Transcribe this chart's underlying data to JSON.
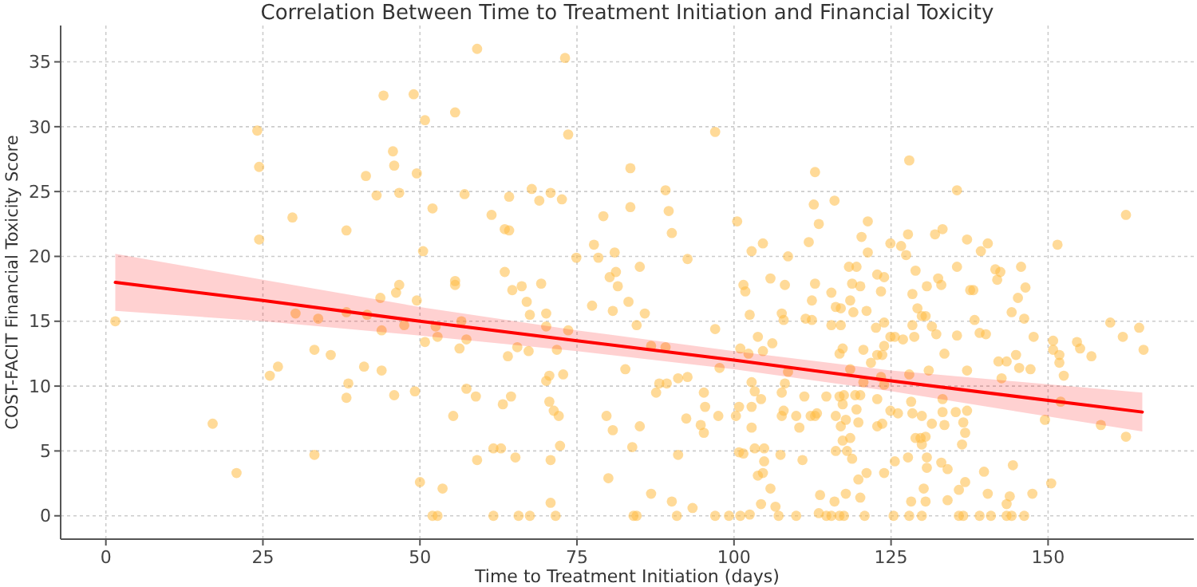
{
  "chart_data": {
    "type": "scatter",
    "title": "Correlation Between Time to Treatment Initiation and Financial Toxicity",
    "xlabel": "Time to Treatment Initiation (days)",
    "ylabel": "COST-FACIT Financial Toxicity Score",
    "xlim": [
      -7.2,
      173.2
    ],
    "xticks": [
      0,
      25,
      50,
      75,
      100,
      125,
      150
    ],
    "ylim": [
      -1.8,
      37.8
    ],
    "yticks": [
      0,
      5,
      10,
      15,
      20,
      25,
      30,
      35
    ],
    "grid": true,
    "series": [
      {
        "marker": "circle",
        "color": "#ffbb44",
        "x": [
          24.1,
          24.4,
          24.4,
          29.7,
          38.3,
          41.4,
          43.1,
          44.2,
          45.7,
          45.9,
          46.7,
          49.0,
          49.5,
          50.8,
          52.0,
          50.5,
          46.7,
          46.2,
          1.5,
          17.0,
          20.8,
          26.1,
          27.4,
          30.2,
          33.2,
          33.2,
          33.8,
          35.8,
          38.6,
          38.3,
          38.3,
          41.1,
          41.6,
          43.9,
          43.9,
          43.7,
          45.9,
          47.5,
          49.2,
          49.5,
          50.0,
          50.8,
          52.8,
          52.8,
          53.6,
          52.5,
          59.1,
          55.6,
          73.1,
          73.6,
          97.0,
          83.5,
          57.1,
          67.8,
          70.8,
          64.2,
          69.0,
          72.6,
          61.4,
          63.5,
          64.2,
          79.2,
          83.5,
          89.1,
          89.6,
          90.1,
          77.7,
          81.0,
          74.9,
          78.4,
          92.6,
          85.0,
          81.2,
          80.2,
          81.5,
          63.5,
          64.7,
          66.2,
          69.3,
          55.6,
          55.6,
          100.5,
          102.8,
          104.6,
          105.8,
          108.1,
          108.6,
          111.9,
          112.7,
          112.9,
          113.5,
          101.5,
          101.8,
          112.9,
          127.9,
          135.5,
          162.4,
          116.0,
          121.3,
          120.3,
          121.3,
          124.9,
          126.6,
          127.4,
          127.7,
          132.0,
          133.2,
          137.1,
          140.4,
          139.3,
          135.5,
          128.9,
          118.3,
          119.5,
          122.8,
          123.9,
          123.4,
          128.4,
          118.8,
          120.1,
          115.5,
          130.7,
          132.5,
          133.0,
          141.6,
          142.4,
          141.9,
          145.7,
          146.4,
          151.5,
          137.6,
          138.1,
          52.0,
          56.3,
          57.4,
          56.6,
          57.4,
          58.9,
          55.3,
          59.1,
          61.7,
          62.9,
          65.2,
          61.7,
          65.7,
          67.5,
          71.6,
          70.8,
          70.8,
          72.3,
          63.2,
          64.5,
          70.6,
          71.3,
          72.1,
          70.1,
          70.6,
          72.8,
          64.0,
          65.5,
          67.3,
          71.8,
          70.1,
          73.6,
          67.0,
          67.5,
          70.1,
          77.4,
          80.7,
          83.2,
          85.8,
          84.5,
          79.7,
          80.7,
          85.0,
          83.8,
          80.0,
          84.0,
          84.5,
          82.7,
          87.6,
          88.1,
          89.3,
          91.1,
          92.6,
          86.8,
          89.1,
          86.8,
          90.1,
          90.9,
          93.4,
          91.1,
          92.4,
          94.7,
          95.2,
          95.4,
          95.2,
          97.5,
          97.0,
          97.7,
          97.0,
          99.2,
          101.0,
          102.5,
          102.5,
          103.8,
          101.0,
          102.3,
          104.6,
          102.8,
          103.3,
          104.3,
          100.8,
          100.3,
          102.8,
          102.8,
          100.8,
          101.5,
          103.3,
          104.8,
          104.8,
          104.6,
          103.8,
          105.8,
          104.3,
          106.6,
          107.1,
          109.9,
          107.6,
          107.9,
          109.9,
          107.6,
          111.2,
          108.1,
          108.6,
          107.4,
          110.9,
          110.4,
          112.2,
          112.9,
          113.7,
          113.5,
          114.7,
          107.6,
          107.9,
          111.4,
          112.4,
          112.4,
          106.1,
          159.9,
          164.5,
          161.9,
          165.2,
          154.6,
          155.1,
          156.9,
          150.8,
          150.8,
          151.8,
          151.8,
          152.5,
          152.0,
          149.5,
          158.4,
          162.4,
          150.5,
          147.7,
          145.4,
          147.2,
          144.9,
          142.1,
          143.4,
          142.6,
          146.2,
          145.2,
          144.2,
          138.3,
          140.1,
          135.5,
          133.5,
          137.1,
          131.0,
          127.9,
          128.2,
          133.2,
          137.1,
          133.2,
          135.3,
          129.9,
          128.4,
          126.1,
          124.9,
          131.5,
          133.5,
          136.5,
          136.8,
          136.3,
          128.9,
          129.7,
          130.5,
          129.9,
          127.7,
          125.6,
          130.7,
          130.7,
          133.0,
          134.0,
          139.8,
          144.4,
          136.8,
          135.8,
          140.4,
          143.9,
          143.4,
          147.5,
          130.2,
          130.5,
          134.0,
          128.2,
          123.9,
          119.8,
          121.1,
          117.8,
          120.1,
          116.0,
          115.5,
          116.8,
          117.5,
          120.8,
          125.4,
          127.9,
          129.9,
          135.8,
          136.5,
          139.1,
          140.9,
          143.4,
          144.2,
          146.2,
          116.2,
          118.0,
          118.8,
          117.3,
          118.5,
          117.0,
          116.2,
          117.8,
          119.8,
          122.8,
          123.6,
          119.5,
          117.3,
          116.8,
          117.5,
          114.7,
          113.2,
          119.3,
          120.1,
          122.8,
          123.9,
          123.4,
          120.6,
          121.8,
          122.8,
          123.6,
          120.6,
          117.3,
          116.8,
          118.5,
          123.9,
          124.9,
          125.6,
          122.6,
          123.9,
          126.9,
          128.7,
          128.4,
          129.9,
          130.5,
          131.5,
          132.2,
          129.2,
          116.2,
          117.0,
          119.0,
          121.1,
          118.5,
          115.5,
          117.0,
          139.1
        ],
        "values": [
          29.7,
          26.9,
          21.3,
          23.0,
          22.0,
          26.2,
          24.7,
          32.4,
          28.1,
          27.0,
          24.9,
          32.5,
          26.4,
          30.5,
          23.7,
          20.4,
          17.8,
          17.2,
          15.0,
          7.1,
          3.3,
          10.8,
          11.5,
          15.6,
          12.8,
          4.7,
          15.2,
          12.4,
          10.2,
          9.1,
          15.7,
          11.5,
          15.5,
          14.3,
          11.2,
          16.8,
          9.3,
          14.7,
          9.6,
          16.6,
          2.6,
          13.4,
          13.8,
          0,
          2.1,
          14.6,
          36.0,
          31.1,
          35.3,
          29.4,
          29.6,
          26.8,
          24.8,
          25.2,
          24.9,
          24.6,
          24.3,
          24.4,
          23.2,
          22.1,
          22.0,
          23.1,
          23.8,
          25.1,
          23.5,
          21.8,
          20.9,
          20.3,
          19.9,
          19.9,
          19.8,
          19.2,
          18.8,
          18.4,
          17.7,
          18.8,
          17.4,
          17.7,
          17.9,
          18.1,
          17.8,
          22.7,
          20.4,
          21.0,
          18.3,
          17.8,
          20.0,
          21.1,
          24.0,
          26.5,
          22.5,
          17.8,
          17.3,
          17.9,
          27.4,
          25.1,
          23.2,
          24.3,
          22.7,
          21.5,
          20.3,
          21.0,
          20.8,
          20.1,
          21.7,
          21.7,
          22.1,
          21.3,
          21.0,
          20.4,
          19.2,
          18.9,
          19.2,
          19.2,
          18.6,
          18.4,
          17.3,
          17.1,
          17.9,
          17.7,
          17.2,
          17.7,
          18.3,
          17.8,
          19.0,
          18.8,
          18.2,
          19.2,
          17.6,
          20.9,
          17.4,
          17.4,
          0,
          12.9,
          13.6,
          15.0,
          9.8,
          9.2,
          7.7,
          4.3,
          5.2,
          5.2,
          4.5,
          0,
          0,
          0,
          0,
          1.0,
          4.3,
          5.4,
          8.6,
          9.2,
          8.8,
          8.1,
          7.7,
          10.4,
          10.8,
          10.9,
          12.3,
          13.0,
          12.7,
          12.8,
          14.6,
          14.3,
          16.5,
          15.5,
          15.6,
          16.2,
          15.8,
          16.5,
          15.6,
          14.7,
          7.7,
          6.6,
          6.9,
          5.3,
          2.9,
          0,
          0,
          11.3,
          9.5,
          10.2,
          10.2,
          10.6,
          10.7,
          13.1,
          13.0,
          1.7,
          1.1,
          0,
          0.6,
          4.7,
          7.5,
          7.0,
          6.4,
          8.4,
          9.5,
          7.7,
          14.4,
          11.4,
          0,
          0,
          0,
          0.1,
          15.5,
          13.8,
          12.9,
          12.5,
          12.7,
          10.3,
          9.6,
          9.0,
          8.4,
          7.7,
          8.4,
          6.8,
          4.9,
          4.8,
          5.2,
          5.2,
          4.2,
          3.3,
          3.1,
          2.1,
          0.9,
          0.7,
          0,
          0,
          7.7,
          8.1,
          7.7,
          9.5,
          9.2,
          10.2,
          11.1,
          4.7,
          4.3,
          6.8,
          7.7,
          7.7,
          1.6,
          0.2,
          0,
          15.6,
          15.1,
          15.2,
          15.1,
          16.6,
          13.3,
          14.9,
          14.5,
          13.8,
          12.8,
          13.4,
          12.9,
          12.3,
          13.5,
          12.8,
          12.4,
          11.8,
          10.8,
          8.8,
          7.4,
          7.0,
          6.1,
          2.5,
          13.8,
          11.4,
          11.3,
          12.4,
          11.9,
          11.9,
          10.6,
          15.2,
          16.8,
          15.7,
          15.1,
          14.0,
          13.9,
          12.5,
          11.2,
          11.2,
          10.9,
          8.8,
          9.0,
          8.1,
          8.0,
          8.0,
          7.7,
          7.9,
          7.9,
          8.1,
          7.1,
          7.0,
          7.2,
          6.4,
          5.5,
          6.0,
          6.0,
          6.1,
          5.5,
          4.5,
          4.2,
          4.5,
          3.7,
          4.1,
          3.6,
          3.4,
          3.9,
          2.6,
          2.0,
          1.7,
          1.5,
          0.9,
          1.7,
          2.1,
          1.1,
          1.2,
          1.1,
          3.3,
          2.8,
          3.3,
          1.7,
          1.4,
          1.1,
          0,
          0,
          0,
          0,
          0,
          0,
          0,
          0,
          0,
          0,
          0,
          0,
          0,
          0,
          5.0,
          5.0,
          4.4,
          5.8,
          6.0,
          6.9,
          7.7,
          7.4,
          7.2,
          6.9,
          7.1,
          8.2,
          8.6,
          9.2,
          9.3,
          9.2,
          7.9,
          9.3,
          9.3,
          9.0,
          10.1,
          10.7,
          10.3,
          11.8,
          12.4,
          12.4,
          12.8,
          12.9,
          12.5,
          11.3,
          13.1,
          13.8,
          13.8,
          14.5,
          14.9,
          13.6,
          13.8,
          14.7,
          15.4,
          15.4,
          14.6,
          14.0,
          16.0,
          16.1,
          16.0,
          15.7,
          15.8,
          16.6,
          14.7,
          14.7,
          14.1
        ]
      },
      {
        "type": "line",
        "color": "#ff0000",
        "x": [
          1.5,
          25,
          50,
          75,
          100,
          125,
          165
        ],
        "values": [
          18.0,
          16.6,
          15.0,
          13.5,
          12.0,
          10.4,
          8.0
        ],
        "lower": [
          15.8,
          15.0,
          13.9,
          12.7,
          11.3,
          9.6,
          6.5
        ],
        "upper": [
          20.2,
          18.2,
          16.1,
          14.3,
          12.7,
          11.2,
          9.5
        ],
        "line_style": "solid",
        "marker": "none"
      }
    ]
  }
}
